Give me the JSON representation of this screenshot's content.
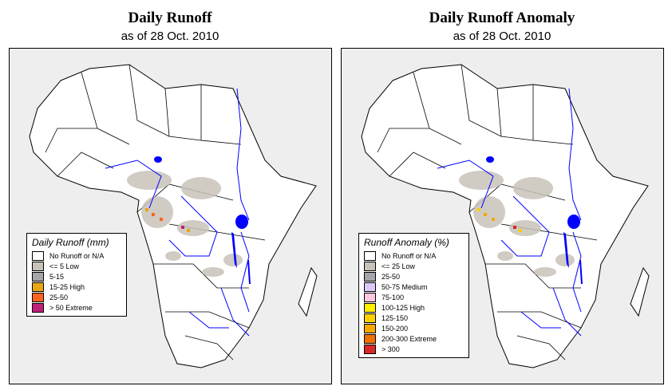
{
  "left": {
    "title": "Daily Runoff",
    "subtitle": "as of  28 Oct. 2010",
    "legend_title": "Daily Runoff (mm)",
    "legend": [
      {
        "label": "No Runoff or N/A",
        "color": "#ffffff"
      },
      {
        "label": "<= 5  Low",
        "color": "#c8c2b8"
      },
      {
        "label": "5-15",
        "color": "#a6a6aa"
      },
      {
        "label": "15-25 High",
        "color": "#e8a612"
      },
      {
        "label": "25-50",
        "color": "#fa6420"
      },
      {
        "label": "> 50  Extreme",
        "color": "#c0207a"
      }
    ]
  },
  "right": {
    "title": "Daily Runoff Anomaly",
    "subtitle": "as of  28 Oct. 2010",
    "legend_title": "Runoff Anomaly (%)",
    "legend": [
      {
        "label": "No Runoff or N/A",
        "color": "#ffffff"
      },
      {
        "label": "<= 25     Low",
        "color": "#c8c2b8"
      },
      {
        "label": "25-50",
        "color": "#a6a6aa"
      },
      {
        "label": "50-75    Medium",
        "color": "#dcc8f8"
      },
      {
        "label": "75-100",
        "color": "#fcc8e0"
      },
      {
        "label": "100-125  High",
        "color": "#fff000"
      },
      {
        "label": "125-150",
        "color": "#fcd000"
      },
      {
        "label": "150-200",
        "color": "#f8a800"
      },
      {
        "label": "200-300  Extreme",
        "color": "#f07000"
      },
      {
        "label": "> 300",
        "color": "#d82828"
      }
    ]
  }
}
